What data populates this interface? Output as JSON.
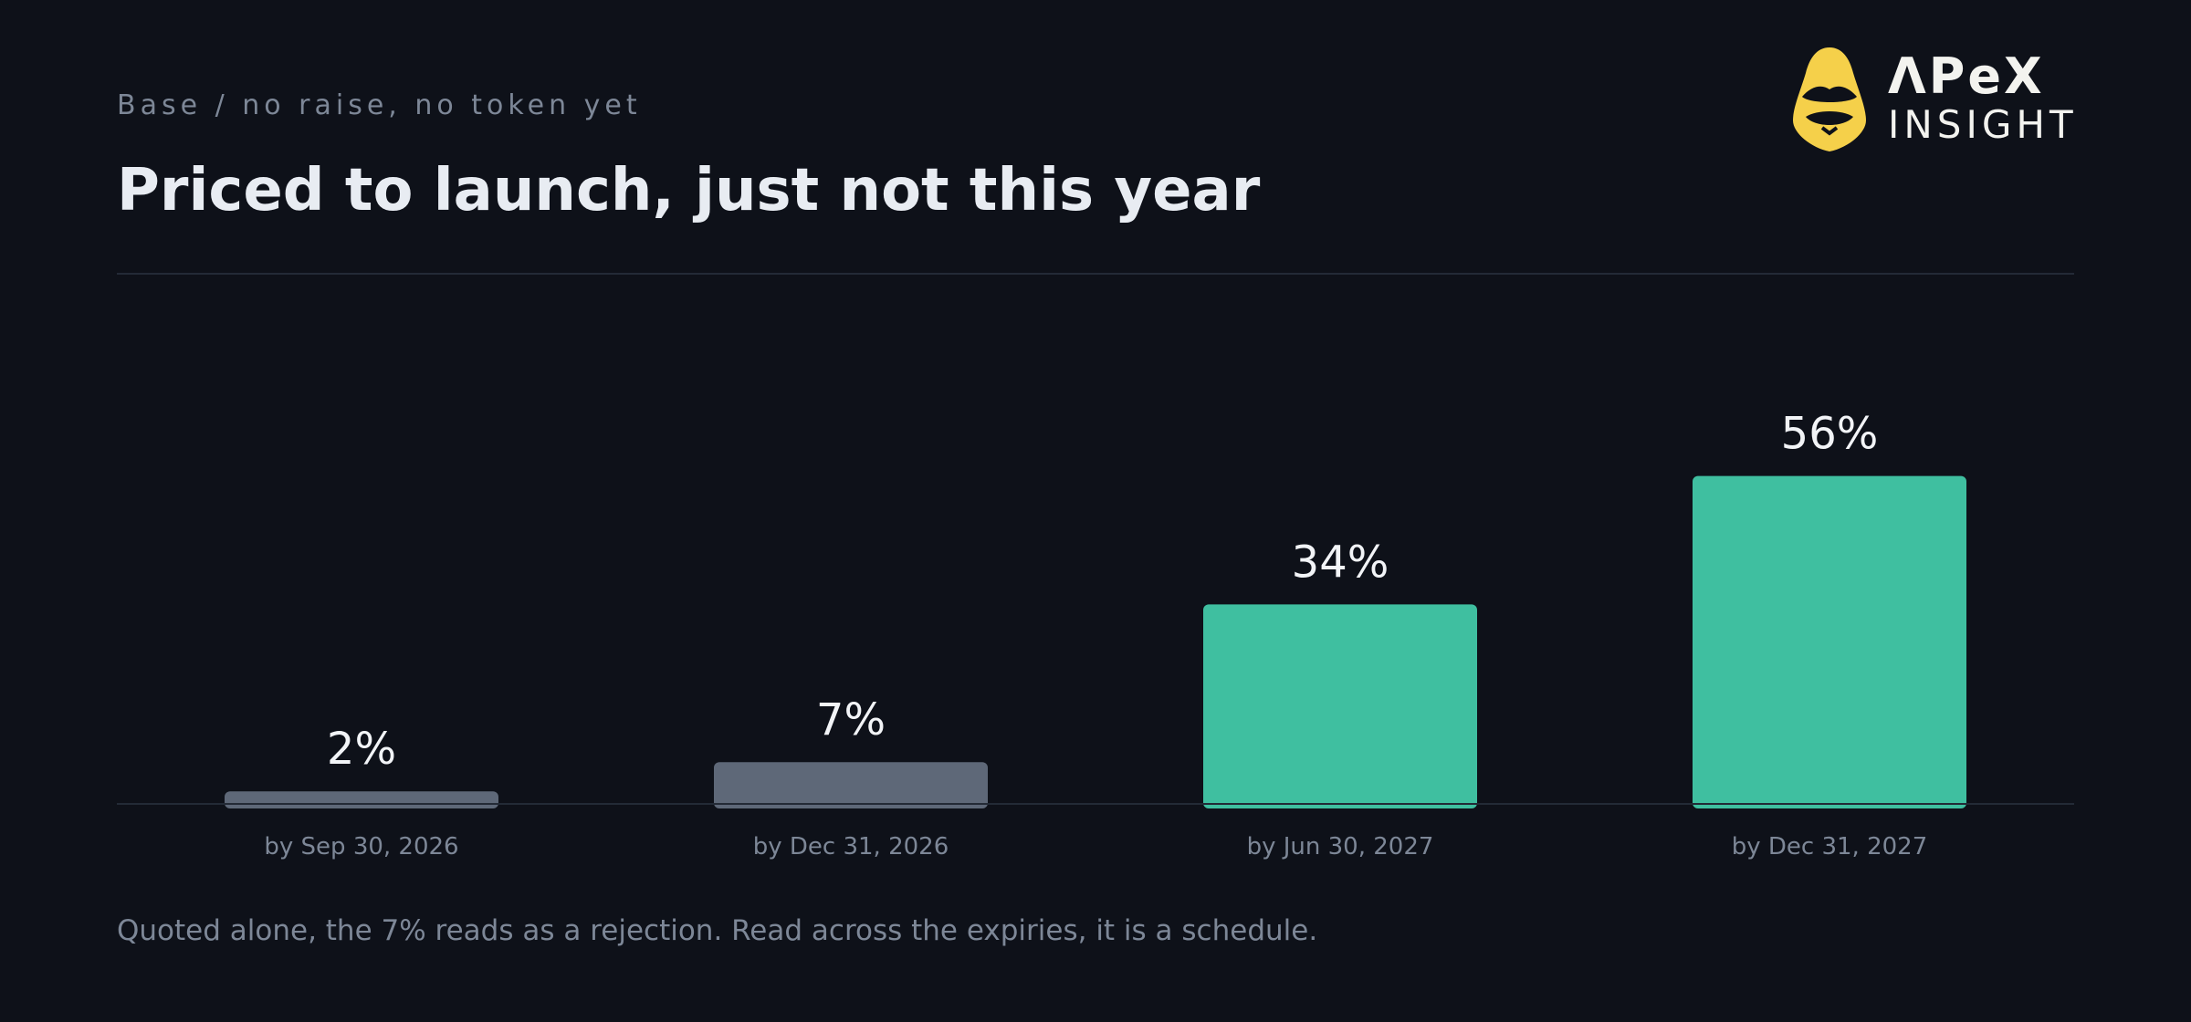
{
  "header": {
    "kicker": "Base / no raise, no token yet",
    "title": "Priced to launch, just not this year"
  },
  "logo": {
    "icon": "helmet-icon",
    "line1": "ΛPeX",
    "line2": "INSIGHT",
    "color": "#f5d04a"
  },
  "chart_data": {
    "type": "bar",
    "categories": [
      "by Sep 30, 2026",
      "by Dec 31, 2026",
      "by Jun 30, 2027",
      "by Dec 31, 2027"
    ],
    "values": [
      2,
      7,
      34,
      56
    ],
    "value_labels": [
      "2%",
      "7%",
      "34%",
      "56%"
    ],
    "unit": "%",
    "ylim": [
      0,
      100
    ],
    "grid": false,
    "legend": "none",
    "colors": [
      "#5e6878",
      "#5e6878",
      "#3fbfa0",
      "#3fbfa0"
    ]
  },
  "footnote": "Quoted alone, the 7% reads as a rejection. Read across the expiries, it is a schedule."
}
